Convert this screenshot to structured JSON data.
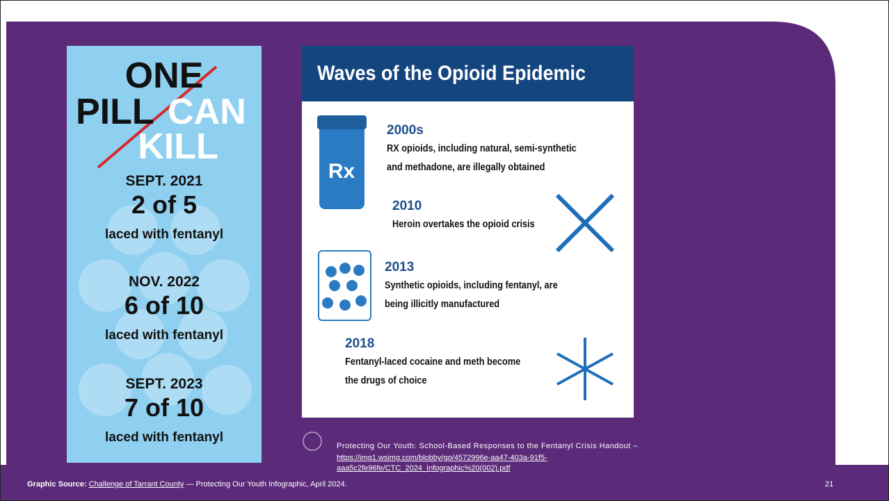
{
  "poster": {
    "headline": [
      "ONE",
      "PILL",
      "CAN",
      "KILL"
    ],
    "stats": [
      {
        "date": "SEPT. 2021",
        "count": "2 of 5",
        "note": "laced with fentanyl"
      },
      {
        "date": "NOV. 2022",
        "count": "6 of 10",
        "note": "laced with fentanyl"
      },
      {
        "date": "SEPT. 2023",
        "count": "7 of 10",
        "note": "laced with fentanyl"
      }
    ]
  },
  "infographic": {
    "title": "Waves of the Opioid Epidemic",
    "waves": [
      {
        "year": "2000s",
        "text": [
          "RX opioids, including natural, semi-synthetic",
          "and methadone, are illegally obtained"
        ]
      },
      {
        "year": "2010",
        "text": [
          "Heroin overtakes the opioid crisis"
        ]
      },
      {
        "year": "2013",
        "text": [
          "Synthetic opioids, including fentanyl, are",
          "being illicitly manufactured"
        ]
      },
      {
        "year": "2018",
        "text": [
          "Fentanyl-laced cocaine and meth become",
          "the drugs of choice"
        ]
      }
    ]
  },
  "citation": {
    "text": "Protecting Our Youth: School-Based Responses to the Fentanyl Crisis Handout –",
    "url_lines": [
      "https://img1.wsimg.com/blobby/go/4572996e-aa47-403a-91f5-",
      "aaa5c2fe96fe/CTC_2024_Infographic%20(002).pdf"
    ]
  },
  "footer": {
    "label": "Graphic Source:",
    "link": "Challenge of Tarrant County",
    "text": " — Protecting Our Youth Infographic, April 2024.",
    "page_number": "21"
  }
}
